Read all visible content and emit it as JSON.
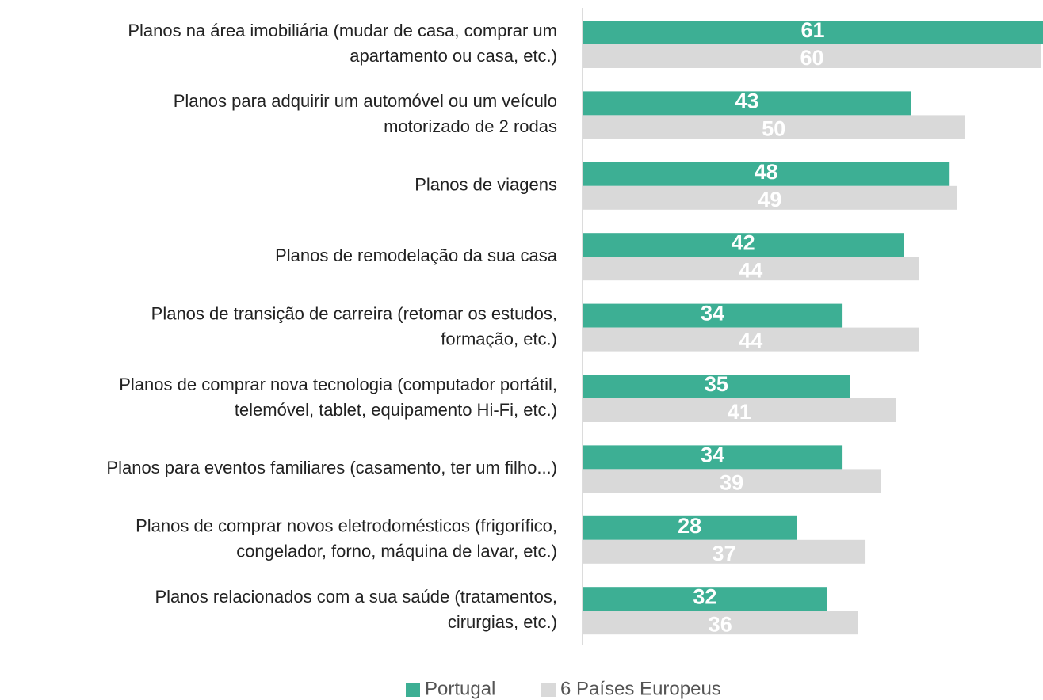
{
  "chart_data": {
    "type": "hbar",
    "categories": [
      [
        "Planos na área imobiliária (mudar de casa, comprar um",
        "apartamento ou casa, etc.)"
      ],
      [
        "Planos para adquirir um automóvel ou um veículo",
        "motorizado de 2 rodas"
      ],
      [
        "Planos de viagens"
      ],
      [
        "Planos de remodelação da sua casa"
      ],
      [
        "Planos de transição de carreira (retomar os estudos,",
        "formação, etc.)"
      ],
      [
        "Planos de comprar nova tecnologia (computador portátil,",
        "telemóvel, tablet, equipamento Hi-Fi, etc.)"
      ],
      [
        "Planos para eventos familiares (casamento, ter um filho...)"
      ],
      [
        "Planos de comprar novos eletrodomésticos (frigorífico,",
        "congelador, forno, máquina de lavar, etc.)"
      ],
      [
        "Planos relacionados com a sua saúde (tratamentos,",
        "cirurgias, etc.)"
      ]
    ],
    "series": [
      {
        "name": "Portugal",
        "color": "#3daf94",
        "values": [
          61,
          43,
          48,
          42,
          34,
          35,
          34,
          28,
          32
        ]
      },
      {
        "name": "6 Países Europeus",
        "color": "#d9d9d9",
        "values": [
          60,
          50,
          49,
          44,
          44,
          41,
          39,
          37,
          36
        ]
      }
    ],
    "xlim": [
      0,
      60
    ],
    "legend": "bottom"
  }
}
